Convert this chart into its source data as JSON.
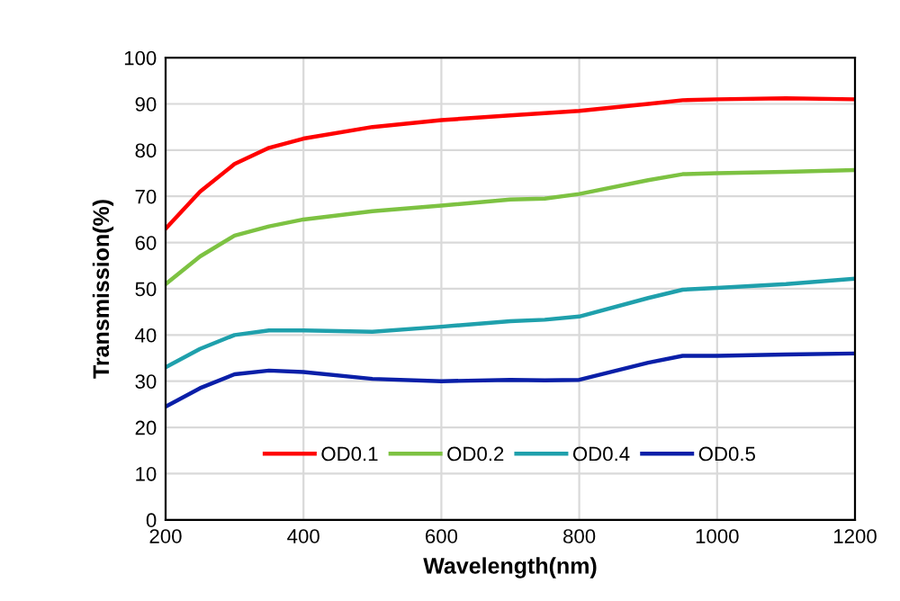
{
  "chart_data": {
    "type": "line",
    "xlabel": "Wavelength(nm)",
    "ylabel": "Transmission(%)",
    "x": [
      200,
      250,
      300,
      350,
      400,
      500,
      600,
      700,
      750,
      800,
      900,
      950,
      1000,
      1100,
      1200
    ],
    "series": [
      {
        "name": "OD0.1",
        "color": "#ff0000",
        "values": [
          63,
          71,
          77,
          80.5,
          82.5,
          85,
          86.5,
          87.5,
          88,
          88.5,
          90,
          90.8,
          91,
          91.2,
          91
        ]
      },
      {
        "name": "OD0.2",
        "color": "#7dc242",
        "values": [
          51,
          57,
          61.5,
          63.5,
          65,
          66.8,
          68,
          69.3,
          69.5,
          70.5,
          73.5,
          74.8,
          75,
          75.3,
          75.7
        ]
      },
      {
        "name": "OD0.4",
        "color": "#1fa0ac",
        "values": [
          33,
          37,
          40,
          41,
          41,
          40.7,
          41.8,
          43,
          43.3,
          44,
          48,
          49.8,
          50.2,
          51,
          52.2
        ]
      },
      {
        "name": "OD0.5",
        "color": "#0a1fa8",
        "values": [
          24.5,
          28.5,
          31.5,
          32.3,
          32,
          30.5,
          30,
          30.3,
          30.2,
          30.3,
          34,
          35.5,
          35.5,
          35.8,
          36
        ]
      }
    ],
    "xlim": [
      200,
      1200
    ],
    "xticks": [
      200,
      400,
      600,
      800,
      1000,
      1200
    ],
    "ylim": [
      0,
      100
    ],
    "yticks": [
      0,
      10,
      20,
      30,
      40,
      50,
      60,
      70,
      80,
      90,
      100
    ],
    "grid": true,
    "legend": "bottom",
    "marker": "none",
    "line_style": "solid"
  }
}
